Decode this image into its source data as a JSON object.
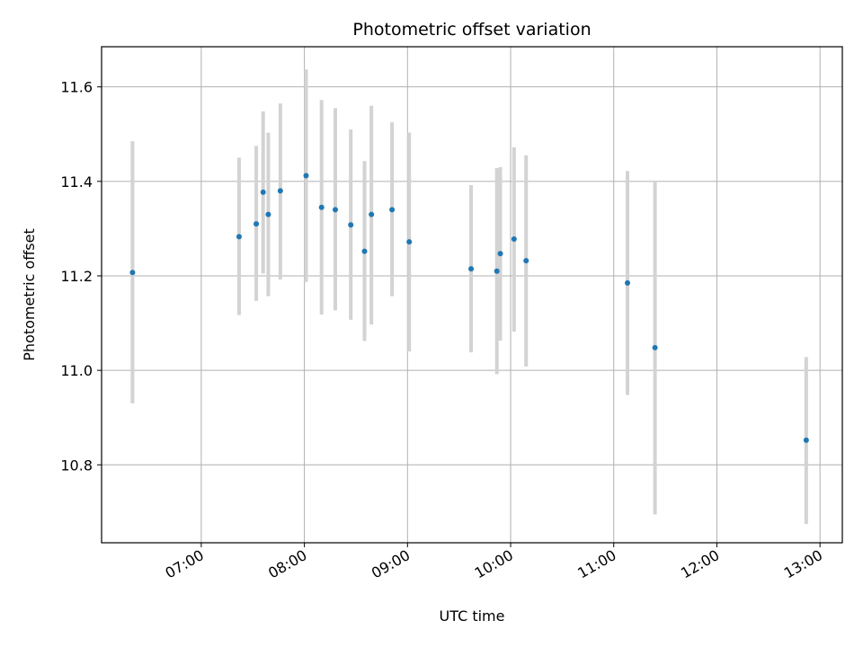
{
  "chart_data": {
    "type": "scatter",
    "title": "Photometric offset variation",
    "xlabel": "UTC time",
    "ylabel": "Photometric offset",
    "x_range": [
      "06:02",
      "13:13"
    ],
    "ylim": [
      10.635,
      11.685
    ],
    "grid": true,
    "x_ticks": [
      "07:00",
      "08:00",
      "09:00",
      "10:00",
      "11:00",
      "12:00",
      "13:00"
    ],
    "y_ticks": [
      10.8,
      11.0,
      11.2,
      11.4,
      11.6
    ],
    "y_tick_labels": [
      "10.8",
      "11.0",
      "11.2",
      "11.4",
      "11.6"
    ],
    "point_color": "#1f77b4",
    "errorbar_color": "#d3d3d3",
    "points": [
      {
        "time": "06:20",
        "y": 11.207,
        "ymin": 10.93,
        "ymax": 11.485
      },
      {
        "time": "07:22",
        "y": 11.283,
        "ymin": 11.117,
        "ymax": 11.45
      },
      {
        "time": "07:32",
        "y": 11.31,
        "ymin": 11.147,
        "ymax": 11.475
      },
      {
        "time": "07:36",
        "y": 11.377,
        "ymin": 11.205,
        "ymax": 11.548
      },
      {
        "time": "07:39",
        "y": 11.33,
        "ymin": 11.157,
        "ymax": 11.503
      },
      {
        "time": "07:46",
        "y": 11.38,
        "ymin": 11.192,
        "ymax": 11.565
      },
      {
        "time": "08:01",
        "y": 11.412,
        "ymin": 11.187,
        "ymax": 11.637
      },
      {
        "time": "08:10",
        "y": 11.345,
        "ymin": 11.118,
        "ymax": 11.572
      },
      {
        "time": "08:18",
        "y": 11.34,
        "ymin": 11.127,
        "ymax": 11.555
      },
      {
        "time": "08:27",
        "y": 11.308,
        "ymin": 11.107,
        "ymax": 11.51
      },
      {
        "time": "08:35",
        "y": 11.252,
        "ymin": 11.062,
        "ymax": 11.443
      },
      {
        "time": "08:39",
        "y": 11.33,
        "ymin": 11.097,
        "ymax": 11.56
      },
      {
        "time": "08:51",
        "y": 11.34,
        "ymin": 11.157,
        "ymax": 11.525
      },
      {
        "time": "09:01",
        "y": 11.272,
        "ymin": 11.04,
        "ymax": 11.503
      },
      {
        "time": "09:37",
        "y": 11.215,
        "ymin": 11.038,
        "ymax": 11.392
      },
      {
        "time": "09:52",
        "y": 11.21,
        "ymin": 10.992,
        "ymax": 11.428
      },
      {
        "time": "09:54",
        "y": 11.247,
        "ymin": 11.063,
        "ymax": 11.43
      },
      {
        "time": "10:02",
        "y": 11.278,
        "ymin": 11.082,
        "ymax": 11.472
      },
      {
        "time": "10:09",
        "y": 11.232,
        "ymin": 11.008,
        "ymax": 11.455
      },
      {
        "time": "11:08",
        "y": 11.185,
        "ymin": 10.948,
        "ymax": 11.422
      },
      {
        "time": "11:24",
        "y": 11.048,
        "ymin": 10.695,
        "ymax": 11.4
      },
      {
        "time": "12:52",
        "y": 10.852,
        "ymin": 10.675,
        "ymax": 11.028
      }
    ]
  }
}
